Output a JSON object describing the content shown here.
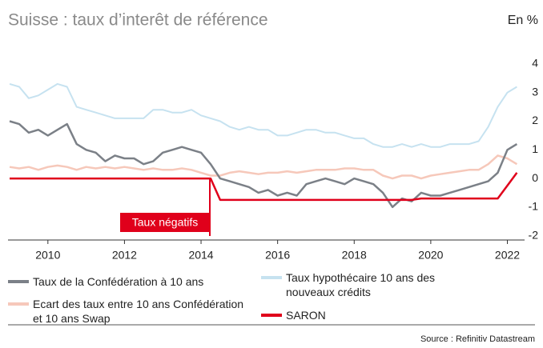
{
  "chart_data": {
    "type": "line",
    "title": "Suisse : taux d’interêt de référence",
    "unit_label": "En %",
    "annotation": "Taux négatifs",
    "source": "Source : Refinitiv Datastream",
    "x": [
      2009,
      2009.25,
      2009.5,
      2009.75,
      2010,
      2010.25,
      2010.5,
      2010.75,
      2011,
      2011.25,
      2011.5,
      2011.75,
      2012,
      2012.25,
      2012.5,
      2012.75,
      2013,
      2013.25,
      2013.5,
      2013.75,
      2014,
      2014.25,
      2014.5,
      2014.75,
      2015,
      2015.25,
      2015.5,
      2015.75,
      2016,
      2016.25,
      2016.5,
      2016.75,
      2017,
      2017.25,
      2017.5,
      2017.75,
      2018,
      2018.25,
      2018.5,
      2018.75,
      2019,
      2019.25,
      2019.5,
      2019.75,
      2020,
      2020.25,
      2020.5,
      2020.75,
      2021,
      2021.25,
      2021.5,
      2021.75,
      2022,
      2022.25
    ],
    "series": [
      {
        "name": "Taux de la Confédération à 10 ans",
        "color": "#7b8087",
        "values": [
          2.0,
          1.9,
          1.6,
          1.7,
          1.5,
          1.7,
          1.9,
          1.2,
          1.0,
          0.9,
          0.6,
          0.8,
          0.7,
          0.7,
          0.5,
          0.6,
          0.9,
          1.0,
          1.1,
          1.0,
          0.9,
          0.5,
          0.0,
          -0.1,
          -0.2,
          -0.3,
          -0.5,
          -0.4,
          -0.6,
          -0.5,
          -0.6,
          -0.2,
          -0.1,
          0.0,
          -0.1,
          -0.2,
          0.0,
          -0.1,
          -0.2,
          -0.5,
          -1.0,
          -0.7,
          -0.8,
          -0.5,
          -0.6,
          -0.6,
          -0.5,
          -0.4,
          -0.3,
          -0.2,
          -0.1,
          0.2,
          1.0,
          1.2
        ]
      },
      {
        "name": "Taux hypothécaire 10 ans des nouveaux crédits",
        "color": "#c6e2f0",
        "values": [
          3.3,
          3.2,
          2.8,
          2.9,
          3.1,
          3.3,
          3.2,
          2.5,
          2.4,
          2.3,
          2.2,
          2.1,
          2.1,
          2.1,
          2.1,
          2.4,
          2.4,
          2.3,
          2.3,
          2.4,
          2.2,
          2.1,
          2.0,
          1.8,
          1.7,
          1.8,
          1.7,
          1.7,
          1.5,
          1.5,
          1.6,
          1.7,
          1.7,
          1.6,
          1.6,
          1.5,
          1.4,
          1.4,
          1.2,
          1.1,
          1.1,
          1.2,
          1.1,
          1.2,
          1.1,
          1.1,
          1.2,
          1.2,
          1.2,
          1.3,
          1.8,
          2.5,
          3.0,
          3.2
        ]
      },
      {
        "name": "Ecart des taux entre 10 ans Confédération et 10 ans Swap",
        "color": "#f6c8ba",
        "values": [
          0.4,
          0.35,
          0.4,
          0.3,
          0.4,
          0.45,
          0.4,
          0.3,
          0.4,
          0.35,
          0.4,
          0.35,
          0.4,
          0.35,
          0.3,
          0.35,
          0.3,
          0.3,
          0.35,
          0.3,
          0.2,
          0.1,
          0.1,
          0.2,
          0.25,
          0.2,
          0.15,
          0.2,
          0.2,
          0.25,
          0.2,
          0.25,
          0.3,
          0.3,
          0.3,
          0.35,
          0.35,
          0.3,
          0.3,
          0.1,
          0.0,
          0.1,
          0.1,
          0.0,
          0.1,
          0.15,
          0.2,
          0.25,
          0.3,
          0.3,
          0.5,
          0.8,
          0.7,
          0.5
        ]
      },
      {
        "name": "SARON",
        "color": "#e0001b",
        "values": [
          0,
          0,
          0,
          0,
          0,
          0,
          0,
          0,
          0,
          0,
          0,
          0,
          0,
          0,
          0,
          0,
          0,
          0,
          0,
          0,
          0,
          0,
          -0.75,
          -0.75,
          -0.75,
          -0.75,
          -0.75,
          -0.75,
          -0.75,
          -0.75,
          -0.75,
          -0.75,
          -0.75,
          -0.75,
          -0.75,
          -0.75,
          -0.75,
          -0.75,
          -0.75,
          -0.75,
          -0.75,
          -0.75,
          -0.75,
          -0.7,
          -0.7,
          -0.7,
          -0.7,
          -0.7,
          -0.7,
          -0.7,
          -0.7,
          -0.7,
          -0.25,
          0.2
        ]
      }
    ],
    "xlim": [
      2009,
      2022.45
    ],
    "xticks": [
      2010,
      2012,
      2014,
      2016,
      2018,
      2020,
      2022
    ],
    "ylim": [
      -2.15,
      4.5
    ],
    "yticks": [
      -2,
      -1,
      0,
      1,
      2,
      3,
      4
    ],
    "yticks_side": "right"
  }
}
